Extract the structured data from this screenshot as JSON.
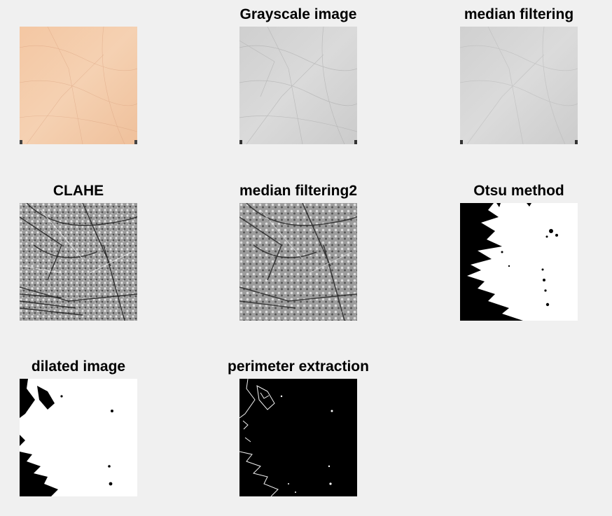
{
  "figure": {
    "background": "#f0f0f0",
    "panels": [
      {
        "title": "",
        "image": "original-skin-photo",
        "tone": "#f2c9a6"
      },
      {
        "title": "Grayscale image",
        "image": "grayscale-skin",
        "tone": "#d3d3d3"
      },
      {
        "title": "median filtering",
        "image": "median-filtered-skin",
        "tone": "#d4d4d4"
      },
      {
        "title": "CLAHE",
        "image": "clahe-enhanced-texture",
        "tone": "#8a8a8a"
      },
      {
        "title": "median filtering2",
        "image": "median-filtered-clahe-texture",
        "tone": "#8c8c8c"
      },
      {
        "title": "Otsu method",
        "image": "otsu-binary-mask",
        "tone": "#ffffff"
      },
      {
        "title": "dilated image",
        "image": "dilated-binary-mask",
        "tone": "#ffffff"
      },
      {
        "title": "perimeter extraction",
        "image": "perimeter-edges",
        "tone": "#000000"
      }
    ]
  }
}
